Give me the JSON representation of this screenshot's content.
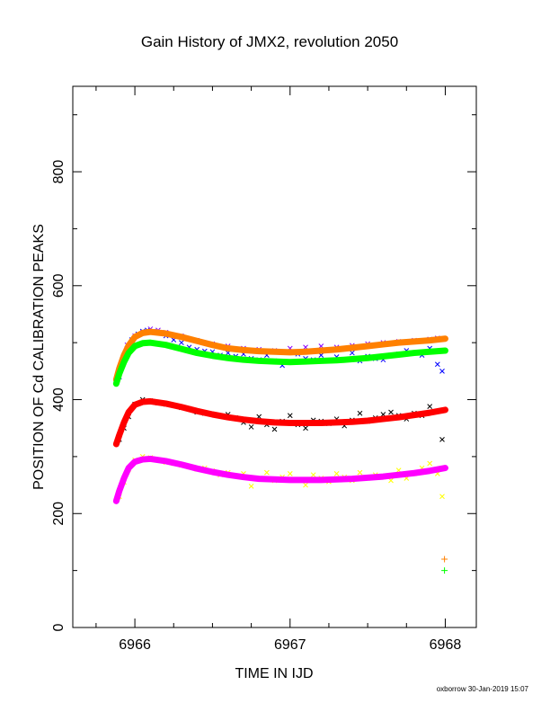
{
  "chart_data": {
    "type": "scatter",
    "title": "Gain History of JMX2, revolution 2050",
    "xlabel": "TIME IN IJD",
    "ylabel": "POSITION OF Cd CALIBRATION PEAKS",
    "xlim": [
      6965.6,
      6968.2
    ],
    "ylim": [
      0,
      950
    ],
    "xticks": [
      6966,
      6967,
      6968
    ],
    "xtick_labels": [
      "6966",
      "6967",
      "6968"
    ],
    "yticks": [
      0,
      200,
      400,
      600,
      800
    ],
    "ytick_labels": [
      "0",
      "200",
      "400",
      "600",
      "800"
    ],
    "grid": false,
    "series": [
      {
        "color": "#0000ff",
        "marker": "x",
        "role": "scatter",
        "points": [
          [
            6965.9,
            440
          ],
          [
            6965.92,
            470
          ],
          [
            6965.95,
            490
          ],
          [
            6965.98,
            505
          ],
          [
            6966.02,
            515
          ],
          [
            6966.05,
            520
          ],
          [
            6966.08,
            522
          ],
          [
            6966.12,
            520
          ],
          [
            6966.15,
            518
          ],
          [
            6966.2,
            512
          ],
          [
            6966.25,
            505
          ],
          [
            6966.3,
            500
          ],
          [
            6966.35,
            492
          ],
          [
            6966.4,
            488
          ],
          [
            6966.45,
            485
          ],
          [
            6966.5,
            484
          ],
          [
            6966.55,
            478
          ],
          [
            6966.6,
            482
          ],
          [
            6966.65,
            476
          ],
          [
            6966.7,
            480
          ],
          [
            6966.75,
            472
          ],
          [
            6966.8,
            470
          ],
          [
            6966.85,
            478
          ],
          [
            6966.9,
            468
          ],
          [
            6966.95,
            460
          ],
          [
            6967.0,
            466
          ],
          [
            6967.05,
            480
          ],
          [
            6967.1,
            472
          ],
          [
            6967.15,
            470
          ],
          [
            6967.2,
            478
          ],
          [
            6967.25,
            468
          ],
          [
            6967.3,
            475
          ],
          [
            6967.35,
            470
          ],
          [
            6967.4,
            482
          ],
          [
            6967.45,
            468
          ],
          [
            6967.5,
            476
          ],
          [
            6967.55,
            472
          ],
          [
            6967.6,
            470
          ],
          [
            6967.65,
            478
          ],
          [
            6967.7,
            480
          ],
          [
            6967.75,
            486
          ],
          [
            6967.8,
            482
          ],
          [
            6967.85,
            478
          ],
          [
            6967.9,
            490
          ],
          [
            6967.95,
            462
          ],
          [
            6967.98,
            450
          ]
        ]
      },
      {
        "color": "#8800ff",
        "marker": "x",
        "role": "scatter",
        "points": [
          [
            6965.95,
            496
          ],
          [
            6966.0,
            512
          ],
          [
            6966.05,
            518
          ],
          [
            6966.1,
            524
          ],
          [
            6966.15,
            522
          ],
          [
            6966.2,
            518
          ],
          [
            6966.3,
            512
          ],
          [
            6966.4,
            504
          ],
          [
            6966.5,
            498
          ],
          [
            6966.6,
            494
          ],
          [
            6966.7,
            490
          ],
          [
            6966.8,
            488
          ],
          [
            6966.9,
            486
          ],
          [
            6967.0,
            490
          ],
          [
            6967.1,
            492
          ],
          [
            6967.2,
            494
          ],
          [
            6967.3,
            492
          ],
          [
            6967.4,
            495
          ],
          [
            6967.5,
            498
          ],
          [
            6967.6,
            500
          ],
          [
            6967.7,
            502
          ],
          [
            6967.8,
            504
          ],
          [
            6967.9,
            506
          ],
          [
            6967.95,
            508
          ]
        ]
      },
      {
        "color": "#000000",
        "marker": "x",
        "role": "scatter",
        "points": [
          [
            6965.9,
            330
          ],
          [
            6965.93,
            350
          ],
          [
            6965.96,
            370
          ],
          [
            6966.0,
            392
          ],
          [
            6966.05,
            400
          ],
          [
            6966.1,
            398
          ],
          [
            6966.15,
            394
          ],
          [
            6966.2,
            392
          ],
          [
            6966.25,
            390
          ],
          [
            6966.3,
            386
          ],
          [
            6966.35,
            384
          ],
          [
            6966.4,
            378
          ],
          [
            6966.45,
            376
          ],
          [
            6966.5,
            374
          ],
          [
            6966.55,
            372
          ],
          [
            6966.6,
            374
          ],
          [
            6966.65,
            368
          ],
          [
            6966.7,
            360
          ],
          [
            6966.75,
            352
          ],
          [
            6966.8,
            370
          ],
          [
            6966.85,
            356
          ],
          [
            6966.9,
            348
          ],
          [
            6966.95,
            362
          ],
          [
            6967.0,
            372
          ],
          [
            6967.05,
            356
          ],
          [
            6967.1,
            350
          ],
          [
            6967.15,
            364
          ],
          [
            6967.2,
            362
          ],
          [
            6967.25,
            358
          ],
          [
            6967.3,
            366
          ],
          [
            6967.35,
            354
          ],
          [
            6967.4,
            364
          ],
          [
            6967.45,
            376
          ],
          [
            6967.5,
            362
          ],
          [
            6967.55,
            368
          ],
          [
            6967.6,
            374
          ],
          [
            6967.65,
            378
          ],
          [
            6967.7,
            372
          ],
          [
            6967.75,
            366
          ],
          [
            6967.8,
            376
          ],
          [
            6967.85,
            372
          ],
          [
            6967.9,
            388
          ],
          [
            6967.95,
            380
          ],
          [
            6967.98,
            330
          ]
        ]
      },
      {
        "color": "#ffff00",
        "marker": "x",
        "role": "scatter",
        "points": [
          [
            6965.9,
            230
          ],
          [
            6965.93,
            255
          ],
          [
            6965.96,
            278
          ],
          [
            6966.0,
            294
          ],
          [
            6966.05,
            300
          ],
          [
            6966.1,
            298
          ],
          [
            6966.15,
            294
          ],
          [
            6966.2,
            290
          ],
          [
            6966.25,
            288
          ],
          [
            6966.3,
            285
          ],
          [
            6966.35,
            282
          ],
          [
            6966.4,
            278
          ],
          [
            6966.45,
            280
          ],
          [
            6966.5,
            275
          ],
          [
            6966.55,
            268
          ],
          [
            6966.6,
            272
          ],
          [
            6966.65,
            266
          ],
          [
            6966.7,
            270
          ],
          [
            6966.75,
            248
          ],
          [
            6966.8,
            262
          ],
          [
            6966.85,
            272
          ],
          [
            6966.9,
            258
          ],
          [
            6966.95,
            264
          ],
          [
            6967.0,
            270
          ],
          [
            6967.05,
            260
          ],
          [
            6967.1,
            250
          ],
          [
            6967.15,
            268
          ],
          [
            6967.2,
            262
          ],
          [
            6967.25,
            256
          ],
          [
            6967.3,
            270
          ],
          [
            6967.35,
            264
          ],
          [
            6967.4,
            258
          ],
          [
            6967.45,
            272
          ],
          [
            6967.5,
            262
          ],
          [
            6967.55,
            268
          ],
          [
            6967.6,
            264
          ],
          [
            6967.65,
            258
          ],
          [
            6967.7,
            276
          ],
          [
            6967.75,
            262
          ],
          [
            6967.8,
            270
          ],
          [
            6967.85,
            280
          ],
          [
            6967.9,
            288
          ],
          [
            6967.95,
            270
          ],
          [
            6967.98,
            230
          ]
        ]
      },
      {
        "color": "#ff8000",
        "marker": "dot",
        "role": "fit",
        "points": [
          [
            6965.88,
            435
          ],
          [
            6965.9,
            455
          ],
          [
            6965.93,
            478
          ],
          [
            6965.96,
            495
          ],
          [
            6966.0,
            510
          ],
          [
            6966.05,
            517
          ],
          [
            6966.1,
            519
          ],
          [
            6966.2,
            516
          ],
          [
            6966.3,
            510
          ],
          [
            6966.4,
            503
          ],
          [
            6966.5,
            496
          ],
          [
            6966.6,
            490
          ],
          [
            6966.7,
            487
          ],
          [
            6966.8,
            485
          ],
          [
            6966.9,
            484
          ],
          [
            6967.0,
            483
          ],
          [
            6967.1,
            484
          ],
          [
            6967.2,
            486
          ],
          [
            6967.3,
            488
          ],
          [
            6967.4,
            491
          ],
          [
            6967.5,
            494
          ],
          [
            6967.6,
            497
          ],
          [
            6967.7,
            500
          ],
          [
            6967.8,
            502
          ],
          [
            6967.9,
            504
          ],
          [
            6968.0,
            507
          ]
        ]
      },
      {
        "color": "#00ff00",
        "marker": "dot",
        "role": "fit",
        "points": [
          [
            6965.88,
            428
          ],
          [
            6965.9,
            446
          ],
          [
            6965.93,
            466
          ],
          [
            6965.96,
            482
          ],
          [
            6966.0,
            494
          ],
          [
            6966.05,
            499
          ],
          [
            6966.1,
            500
          ],
          [
            6966.2,
            496
          ],
          [
            6966.3,
            489
          ],
          [
            6966.4,
            482
          ],
          [
            6966.5,
            477
          ],
          [
            6966.6,
            473
          ],
          [
            6966.7,
            470
          ],
          [
            6966.8,
            468
          ],
          [
            6966.9,
            467
          ],
          [
            6967.0,
            466
          ],
          [
            6967.1,
            467
          ],
          [
            6967.2,
            468
          ],
          [
            6967.3,
            469
          ],
          [
            6967.4,
            471
          ],
          [
            6967.5,
            473
          ],
          [
            6967.6,
            476
          ],
          [
            6967.7,
            479
          ],
          [
            6967.8,
            482
          ],
          [
            6967.9,
            484
          ],
          [
            6968.0,
            486
          ]
        ]
      },
      {
        "color": "#ff0000",
        "marker": "dot",
        "role": "fit",
        "points": [
          [
            6965.88,
            322
          ],
          [
            6965.9,
            338
          ],
          [
            6965.93,
            360
          ],
          [
            6965.96,
            378
          ],
          [
            6966.0,
            391
          ],
          [
            6966.05,
            396
          ],
          [
            6966.1,
            397
          ],
          [
            6966.2,
            393
          ],
          [
            6966.3,
            387
          ],
          [
            6966.4,
            380
          ],
          [
            6966.5,
            374
          ],
          [
            6966.6,
            369
          ],
          [
            6966.7,
            365
          ],
          [
            6966.8,
            362
          ],
          [
            6966.9,
            360
          ],
          [
            6967.0,
            359
          ],
          [
            6967.1,
            359
          ],
          [
            6967.2,
            359
          ],
          [
            6967.3,
            360
          ],
          [
            6967.4,
            361
          ],
          [
            6967.5,
            363
          ],
          [
            6967.6,
            366
          ],
          [
            6967.7,
            369
          ],
          [
            6967.8,
            373
          ],
          [
            6967.9,
            377
          ],
          [
            6968.0,
            382
          ]
        ]
      },
      {
        "color": "#ff00ff",
        "marker": "dot",
        "role": "fit",
        "points": [
          [
            6965.88,
            222
          ],
          [
            6965.9,
            240
          ],
          [
            6965.93,
            262
          ],
          [
            6965.96,
            280
          ],
          [
            6966.0,
            291
          ],
          [
            6966.05,
            295
          ],
          [
            6966.1,
            296
          ],
          [
            6966.2,
            292
          ],
          [
            6966.3,
            286
          ],
          [
            6966.4,
            279
          ],
          [
            6966.5,
            273
          ],
          [
            6966.6,
            268
          ],
          [
            6966.7,
            264
          ],
          [
            6966.8,
            261
          ],
          [
            6966.9,
            260
          ],
          [
            6967.0,
            259
          ],
          [
            6967.1,
            259
          ],
          [
            6967.2,
            259
          ],
          [
            6967.3,
            260
          ],
          [
            6967.4,
            261
          ],
          [
            6967.5,
            263
          ],
          [
            6967.6,
            265
          ],
          [
            6967.7,
            268
          ],
          [
            6967.8,
            271
          ],
          [
            6967.9,
            275
          ],
          [
            6968.0,
            280
          ]
        ]
      },
      {
        "color": "#ff8000",
        "marker": "plus",
        "role": "marker",
        "points": [
          [
            6967.995,
            120
          ]
        ]
      },
      {
        "color": "#00ff00",
        "marker": "plus",
        "role": "marker",
        "points": [
          [
            6967.995,
            100
          ]
        ]
      }
    ]
  },
  "footer": {
    "credit": "oxborrow 30-Jan-2019 15:07"
  }
}
